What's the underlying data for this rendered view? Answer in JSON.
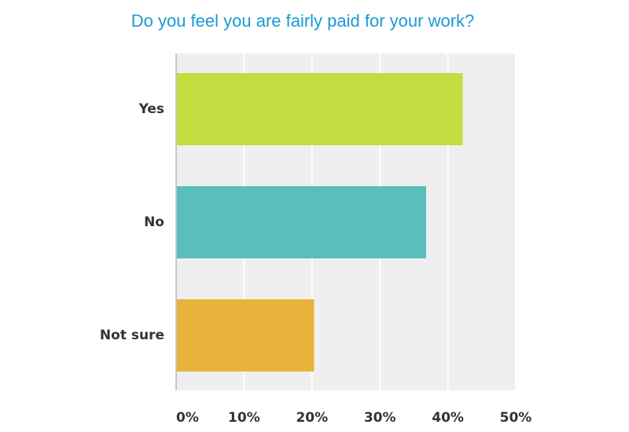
{
  "chart_data": {
    "type": "bar",
    "orientation": "horizontal",
    "title": "Do you feel you are fairly paid for your work?",
    "categories": [
      "Yes",
      "No",
      "Not sure"
    ],
    "values": [
      42.2,
      36.8,
      20.3
    ],
    "colors": [
      "#c5dc41",
      "#59bfbc",
      "#e8b33a"
    ],
    "xlim": [
      0,
      50
    ],
    "x_ticks": [
      0,
      10,
      20,
      30,
      40,
      50
    ],
    "x_tick_labels": [
      "0%",
      "10%",
      "20%",
      "30%",
      "40%",
      "50%"
    ],
    "xlabel": "",
    "ylabel": "",
    "grid": true,
    "plot_background": "#efefef"
  }
}
